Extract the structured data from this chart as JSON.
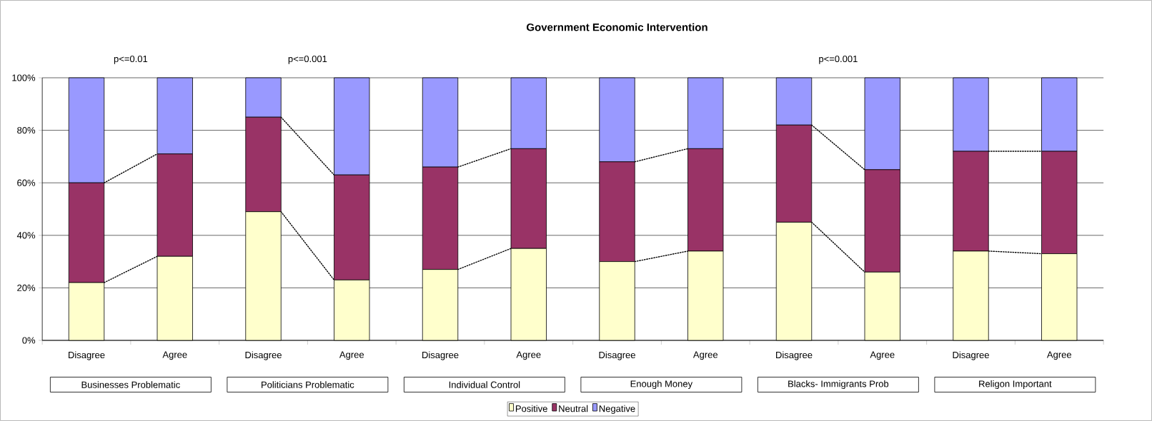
{
  "chart_data": {
    "type": "bar",
    "title": "Government Economic Intervention",
    "stacked": true,
    "categories": [
      "Disagree",
      "Agree",
      "Disagree",
      "Agree",
      "Disagree",
      "Agree",
      "Disagree",
      "Agree",
      "Disagree",
      "Agree",
      "Disagree",
      "Agree"
    ],
    "series": [
      {
        "name": "Positive",
        "color": "#ffffcc",
        "values": [
          22,
          32,
          49,
          23,
          27,
          35,
          30,
          34,
          45,
          26,
          34,
          33
        ]
      },
      {
        "name": "Neutral",
        "color": "#993366",
        "values": [
          38,
          39,
          36,
          40,
          39,
          38,
          38,
          39,
          37,
          39,
          38,
          39
        ]
      },
      {
        "name": "Negative",
        "color": "#9999ff",
        "values": [
          40,
          29,
          15,
          37,
          34,
          27,
          32,
          27,
          18,
          35,
          28,
          28
        ]
      }
    ],
    "ylim": [
      0,
      100
    ],
    "yticks": [
      {
        "value": 0,
        "label": "0%"
      },
      {
        "value": 20,
        "label": "20%"
      },
      {
        "value": 40,
        "label": "40%"
      },
      {
        "value": 60,
        "label": "60%"
      },
      {
        "value": 80,
        "label": "80%"
      },
      {
        "value": 100,
        "label": "100%"
      }
    ],
    "grid": "y",
    "legend": "bottom",
    "annotations": [
      "p<=0.01",
      "p<=0.001",
      "p<=0.001",
      "Businesses Problematic",
      "Politicians Problematic",
      "Individual Control",
      "Enough Money",
      "Blacks- Immigrants Prob",
      "Religon Important"
    ]
  }
}
